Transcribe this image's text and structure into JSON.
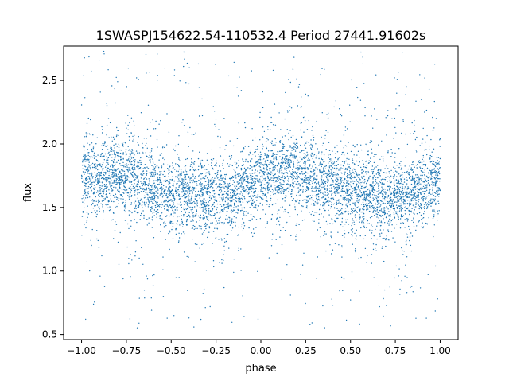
{
  "chart_data": {
    "type": "scatter",
    "title": "1SWASPJ154622.54-110532.4 Period 27441.91602s",
    "xlabel": "phase",
    "ylabel": "flux",
    "xlim": [
      -1.1,
      1.1
    ],
    "ylim": [
      0.46,
      2.77
    ],
    "x_ticks": [
      -1.0,
      -0.75,
      -0.5,
      -0.25,
      0.0,
      0.25,
      0.5,
      0.75,
      1.0
    ],
    "x_tick_labels": [
      "−1.00",
      "−0.75",
      "−0.50",
      "−0.25",
      "0.00",
      "0.25",
      "0.50",
      "0.75",
      "1.00"
    ],
    "y_ticks": [
      0.5,
      1.0,
      1.5,
      2.0,
      2.5
    ],
    "y_tick_labels": [
      "0.5",
      "1.0",
      "1.5",
      "2.0",
      "2.5"
    ],
    "grid": false,
    "legend": "none",
    "marker_color": "#1f77b4",
    "series": [
      {
        "phase_range": [
          -1.0,
          1.0
        ],
        "trend": {
          "x": [
            -1.0,
            -0.9,
            -0.8,
            -0.7,
            -0.6,
            -0.5,
            -0.4,
            -0.3,
            -0.2,
            -0.1,
            0.0,
            0.1,
            0.2,
            0.3,
            0.4,
            0.5,
            0.6,
            0.7,
            0.8,
            0.9,
            1.0
          ],
          "y": [
            1.72,
            1.76,
            1.78,
            1.74,
            1.68,
            1.62,
            1.59,
            1.57,
            1.6,
            1.66,
            1.72,
            1.76,
            1.78,
            1.74,
            1.68,
            1.62,
            1.59,
            1.57,
            1.6,
            1.66,
            1.72
          ]
        },
        "core_spread": 0.14,
        "outlier_range": [
          0.55,
          2.75
        ]
      }
    ]
  }
}
